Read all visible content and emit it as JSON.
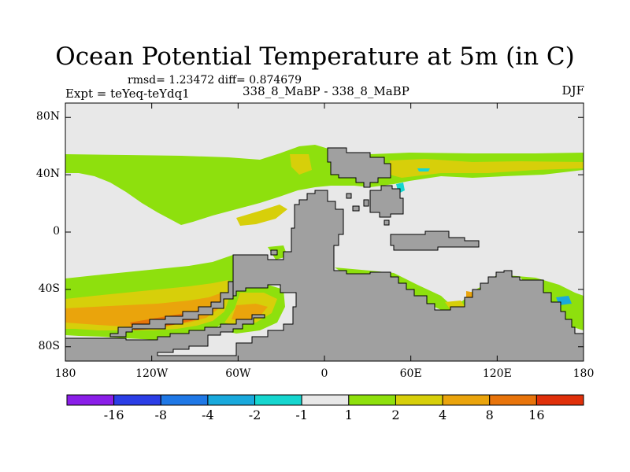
{
  "figure": {
    "title": "Ocean Potential Temperature at 5m (in C)",
    "stats": "rmsd= 1.23472 diff= 0.874679",
    "experiment": "Expt = teYeq-teYdq1",
    "runs": "338_8_MaBP - 338_8_MaBP",
    "season": "DJF"
  },
  "axes": {
    "lat_ticks": [
      {
        "value": 80,
        "label": "80N"
      },
      {
        "value": 40,
        "label": "40N"
      },
      {
        "value": 0,
        "label": "0"
      },
      {
        "value": -40,
        "label": "40S"
      },
      {
        "value": -80,
        "label": "80S"
      }
    ],
    "lon_ticks": [
      {
        "value": -180,
        "label": "180"
      },
      {
        "value": -120,
        "label": "120W"
      },
      {
        "value": -60,
        "label": "60W"
      },
      {
        "value": 0,
        "label": "0"
      },
      {
        "value": 60,
        "label": "60E"
      },
      {
        "value": 120,
        "label": "120E"
      },
      {
        "value": 180,
        "label": "180"
      }
    ]
  },
  "colorbar": {
    "colors": [
      "#8a1ee8",
      "#2b3ee6",
      "#1f78e6",
      "#19a9dc",
      "#16d6cf",
      "#e8e8e8",
      "#8ee00d",
      "#d7cf0a",
      "#eaa40c",
      "#e8740b",
      "#e0300a"
    ],
    "labels": [
      "-16",
      "-8",
      "-4",
      "-2",
      "-1",
      "1",
      "2",
      "4",
      "8",
      "16"
    ]
  },
  "colors": {
    "land": "#a0a0a0",
    "ocean_neutral": "#e8e8e8",
    "band_1_2": "#8ee00d",
    "band_2_4": "#d7cf0a",
    "band_4_8": "#eaa40c",
    "band_8_16": "#e8740b",
    "band_neg_2_1": "#16d6cf",
    "band_neg_4_2": "#19a9dc"
  }
}
